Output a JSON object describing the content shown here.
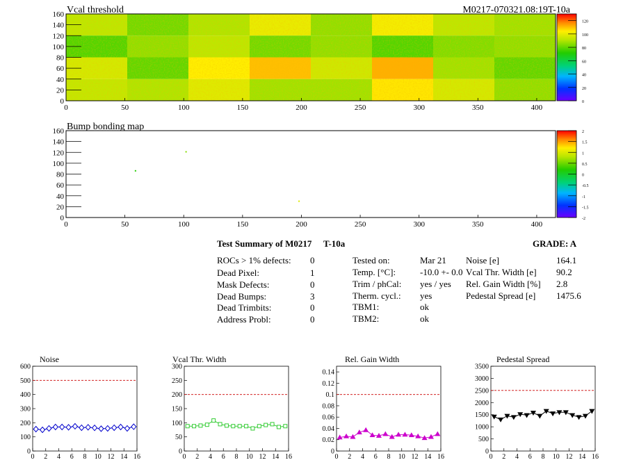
{
  "header": {
    "title": "Vcal threshold",
    "module_id": "M0217-070321.08:19T-10a"
  },
  "bump_title": "Bump bonding map",
  "colors": {
    "noise_series": "#0000cc",
    "vcal_series": "#33cc33",
    "gain_series": "#cc00cc",
    "pedestal_series": "#000000",
    "cut_line": "#cc0000"
  },
  "summary": {
    "title": "Test Summary of M0217",
    "tag": "T-10a",
    "grade": "GRADE:  A",
    "defects": [
      {
        "label": "ROCs > 1% defects:",
        "value": "0"
      },
      {
        "label": "Dead Pixel:",
        "value": "1"
      },
      {
        "label": "Mask Defects:",
        "value": "0"
      },
      {
        "label": "Dead Bumps:",
        "value": "3"
      },
      {
        "label": "Dead Trimbits:",
        "value": "0"
      },
      {
        "label": "Address Probl:",
        "value": "0"
      }
    ],
    "conditions": [
      {
        "label": "Tested on:",
        "value": "Mar 21"
      },
      {
        "label": "Temp. [°C]:",
        "value": "-10.0 +- 0.0"
      },
      {
        "label": "Trim / phCal:",
        "value": "yes / yes"
      },
      {
        "label": "Therm. cycl.:",
        "value": "yes"
      },
      {
        "label": "TBM1:",
        "value": "ok"
      },
      {
        "label": "TBM2:",
        "value": "ok"
      }
    ],
    "results": [
      {
        "label": "Noise [e]",
        "value": "164.1"
      },
      {
        "label": "Vcal Thr. Width [e]",
        "value": "90.2"
      },
      {
        "label": "Rel. Gain Width [%]",
        "value": "2.8"
      },
      {
        "label": "Pedestal Spread [e]",
        "value": "1475.6"
      }
    ]
  },
  "chart_data": [
    {
      "type": "heatmap",
      "title": "Vcal threshold",
      "xlim": [
        0,
        416
      ],
      "ylim": [
        0,
        160
      ],
      "xticks": [
        0,
        50,
        100,
        150,
        200,
        250,
        300,
        350,
        400
      ],
      "yticks": [
        0,
        20,
        40,
        60,
        80,
        100,
        120,
        140,
        160
      ],
      "zlim": [
        0,
        130
      ],
      "zticks": [
        0,
        20,
        40,
        60,
        80,
        100,
        120
      ],
      "roc_mean_values": [
        [
          92,
          82,
          90,
          100,
          86,
          102,
          92,
          88
        ],
        [
          78,
          86,
          92,
          82,
          86,
          78,
          84,
          86
        ],
        [
          96,
          80,
          104,
          110,
          95,
          112,
          88,
          80
        ],
        [
          93,
          90,
          98,
          88,
          88,
          105,
          96,
          86
        ]
      ]
    },
    {
      "type": "heatmap",
      "title": "Bump bonding map",
      "xlim": [
        0,
        416
      ],
      "ylim": [
        0,
        160
      ],
      "xticks": [
        0,
        50,
        100,
        150,
        200,
        250,
        300,
        350,
        400
      ],
      "yticks": [
        0,
        20,
        40,
        60,
        80,
        100,
        120,
        140,
        160
      ],
      "zlim": [
        -2,
        2
      ],
      "zticks": [
        -2,
        -1.5,
        -1,
        -0.5,
        0,
        0.5,
        1,
        1.5,
        2
      ],
      "points": [
        {
          "x": 59,
          "y": 86,
          "z": 0.2
        },
        {
          "x": 102,
          "y": 121,
          "z": 0.6
        },
        {
          "x": 198,
          "y": 30,
          "z": 1.0
        }
      ]
    },
    {
      "type": "line",
      "title": "Noise",
      "x": [
        0,
        1,
        2,
        3,
        4,
        5,
        6,
        7,
        8,
        9,
        10,
        11,
        12,
        13,
        14,
        15
      ],
      "values": [
        155,
        150,
        160,
        170,
        170,
        168,
        175,
        165,
        168,
        164,
        158,
        160,
        165,
        170,
        160,
        172
      ],
      "cut": 500,
      "xlim": [
        0,
        16
      ],
      "ylim": [
        0,
        600
      ],
      "xticks": [
        0,
        2,
        4,
        6,
        8,
        10,
        12,
        14,
        16
      ],
      "yticks": [
        0,
        100,
        200,
        300,
        400,
        500,
        600
      ],
      "marker": "diamond",
      "color_key": "noise_series"
    },
    {
      "type": "line",
      "title": "Vcal Thr. Width",
      "x": [
        0,
        1,
        2,
        3,
        4,
        5,
        6,
        7,
        8,
        9,
        10,
        11,
        12,
        13,
        14,
        15
      ],
      "values": [
        88,
        88,
        90,
        93,
        108,
        95,
        90,
        88,
        88,
        88,
        80,
        88,
        92,
        95,
        85,
        88
      ],
      "cut": 200,
      "xlim": [
        0,
        16
      ],
      "ylim": [
        0,
        300
      ],
      "xticks": [
        0,
        2,
        4,
        6,
        8,
        10,
        12,
        14,
        16
      ],
      "yticks": [
        0,
        50,
        100,
        150,
        200,
        250,
        300
      ],
      "marker": "square",
      "color_key": "vcal_series"
    },
    {
      "type": "line",
      "title": "Rel. Gain Width",
      "x": [
        0,
        1,
        2,
        3,
        4,
        5,
        6,
        7,
        8,
        9,
        10,
        11,
        12,
        13,
        14,
        15
      ],
      "values": [
        0.024,
        0.026,
        0.025,
        0.033,
        0.037,
        0.028,
        0.027,
        0.03,
        0.025,
        0.029,
        0.029,
        0.028,
        0.026,
        0.023,
        0.025,
        0.03
      ],
      "cut": 0.1,
      "xlim": [
        0,
        16
      ],
      "ylim": [
        0,
        0.15
      ],
      "xticks": [
        0,
        2,
        4,
        6,
        8,
        10,
        12,
        14,
        16
      ],
      "yticks": [
        0,
        0.02,
        0.04,
        0.06,
        0.08,
        0.1,
        0.12,
        0.14
      ],
      "marker": "triangle",
      "color_key": "gain_series"
    },
    {
      "type": "line",
      "title": "Pedestal Spread",
      "x": [
        0,
        1,
        2,
        3,
        4,
        5,
        6,
        7,
        8,
        9,
        10,
        11,
        12,
        13,
        14,
        15
      ],
      "values": [
        1420,
        1300,
        1450,
        1400,
        1520,
        1480,
        1580,
        1450,
        1650,
        1550,
        1600,
        1600,
        1480,
        1400,
        1450,
        1650
      ],
      "cut": 2500,
      "xlim": [
        0,
        16
      ],
      "ylim": [
        0,
        3500
      ],
      "xticks": [
        0,
        2,
        4,
        6,
        8,
        10,
        12,
        14,
        16
      ],
      "yticks": [
        0,
        500,
        1000,
        1500,
        2000,
        2500,
        3000,
        3500
      ],
      "marker": "triangle-down",
      "color_key": "pedestal_series"
    }
  ]
}
